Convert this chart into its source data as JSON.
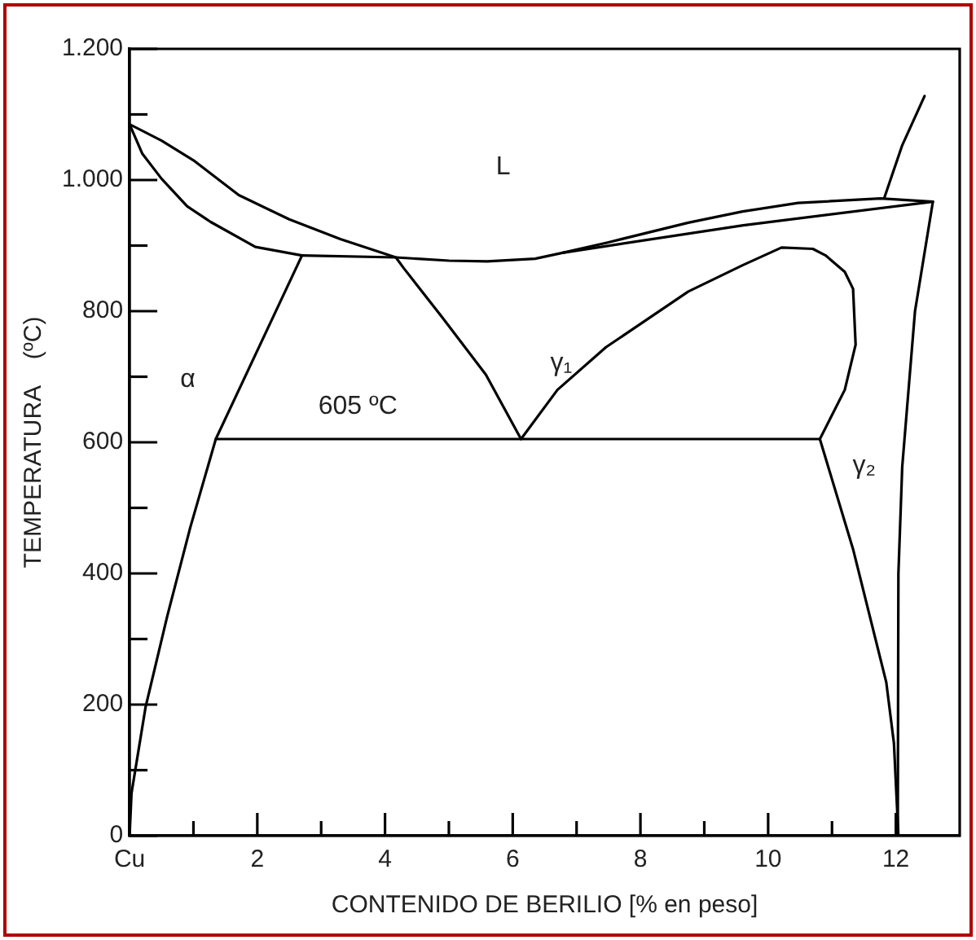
{
  "chart_data": {
    "type": "line",
    "xlabel": "CONTENIDO DE BERILIO [% en peso]",
    "ylabel": "TEMPERATURA    (ºC)",
    "xlim": [
      0,
      13
    ],
    "ylim": [
      0,
      1200
    ],
    "xticks": [
      {
        "value": 0,
        "label": "Cu"
      },
      {
        "value": 1,
        "label": null
      },
      2,
      {
        "value": 3,
        "label": null
      },
      4,
      {
        "value": 5,
        "label": null
      },
      6,
      {
        "value": 7,
        "label": null
      },
      8,
      {
        "value": 9,
        "label": null
      },
      10,
      {
        "value": 11,
        "label": null
      },
      12
    ],
    "yticks": [
      0,
      {
        "value": 100,
        "label": null
      },
      200,
      {
        "value": 300,
        "label": null
      },
      400,
      {
        "value": 500,
        "label": null
      },
      600,
      {
        "value": 700,
        "label": null
      },
      800,
      {
        "value": 900,
        "label": null
      },
      {
        "value": 1000,
        "label": "1.000"
      },
      {
        "value": 1100,
        "label": null
      },
      {
        "value": 1200,
        "label": "1.200"
      }
    ],
    "legend": false,
    "grid": false,
    "marker": "none",
    "line_style": "solid",
    "series": [
      {
        "color": "#000000",
        "x": [
          0,
          0.5,
          1.0,
          1.71,
          2.5,
          3.3,
          4.17,
          4.29,
          4.9,
          5.58,
          6.13,
          6.7,
          7.46,
          8.75,
          9.6,
          10.21,
          10.7,
          10.9,
          11.2,
          11.33,
          11.37,
          11.2,
          10.81,
          11.33,
          11.85,
          11.97,
          12.04
        ],
        "values": [
          1085,
          1060,
          1030,
          977,
          940,
          910,
          882,
          866,
          790,
          703,
          605,
          680,
          745,
          830,
          870,
          897,
          895,
          885,
          860,
          834,
          749,
          680,
          605,
          437,
          234,
          141,
          0
        ]
      },
      {
        "color": "#000000",
        "x": [
          0,
          0.2,
          0.5,
          0.9,
          1.27,
          1.97,
          2.7,
          1.35,
          0.95,
          0.59,
          0.25,
          0.03,
          0
        ],
        "values": [
          1085,
          1040,
          1002,
          960,
          936,
          898,
          885,
          605,
          470,
          335,
          196,
          65,
          0
        ]
      },
      {
        "color": "#000000",
        "x": [
          2.7,
          4.17,
          5.0,
          5.6,
          6.35,
          6.78,
          7.5,
          8.75,
          9.6,
          10.47,
          11.76,
          12.58,
          12.3,
          12.1,
          12.04,
          12.03
        ],
        "values": [
          885,
          882,
          877,
          876,
          880,
          889,
          905,
          935,
          952,
          965,
          972,
          967,
          800,
          563,
          400,
          0
        ]
      },
      {
        "color": "#000000",
        "x": [
          6.78,
          9.61,
          12.58
        ],
        "values": [
          889,
          931,
          967
        ]
      },
      {
        "color": "#000000",
        "x": [
          11.82,
          12.1,
          12.45
        ],
        "values": [
          973,
          1053,
          1128
        ]
      },
      {
        "color": "#000000",
        "x": [
          1.35,
          10.81
        ],
        "values": [
          605,
          605
        ]
      }
    ],
    "annotations": [
      "L",
      "γ₁",
      "α",
      "605 ºC",
      "γ₂"
    ]
  }
}
